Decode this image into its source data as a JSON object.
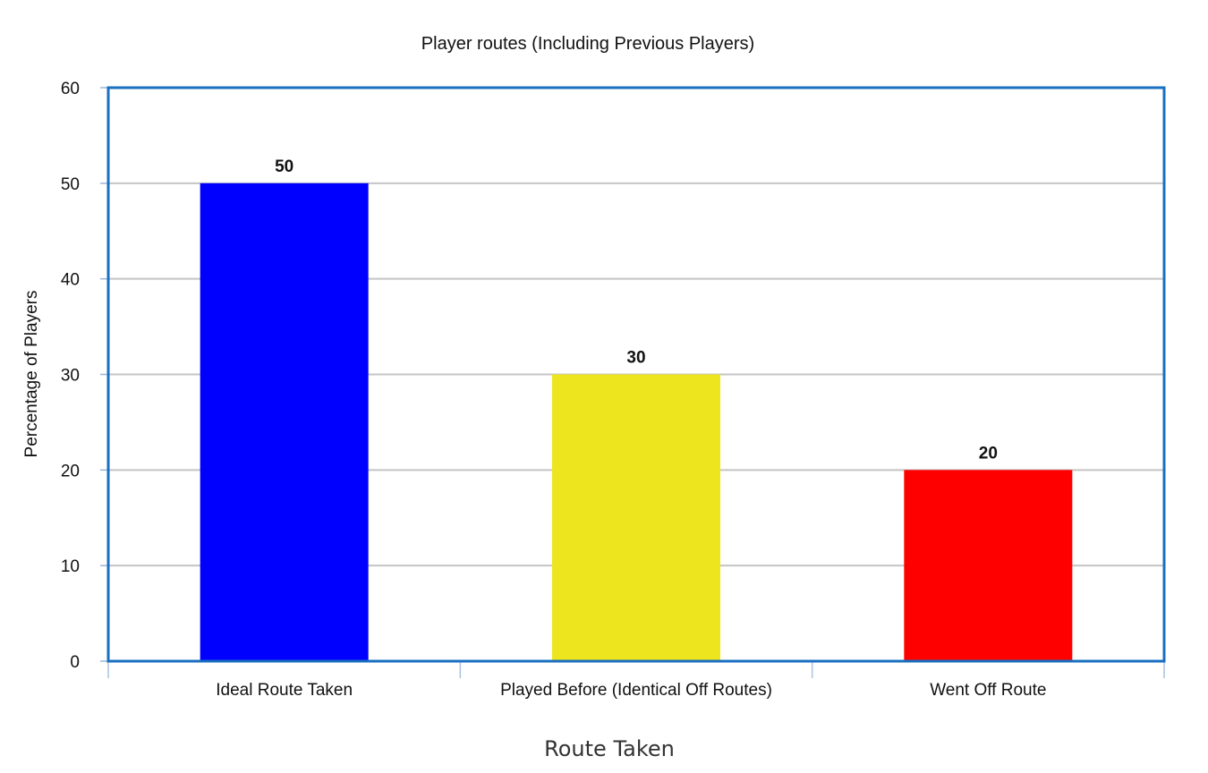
{
  "chart_data": {
    "type": "bar",
    "title": "Player routes (Including Previous Players)",
    "xlabel": "Route Taken",
    "ylabel": "Percentage of Players",
    "categories": [
      "Ideal Route Taken",
      "Played Before (Identical Off Routes)",
      "Went Off Route"
    ],
    "values": [
      50,
      30,
      20
    ],
    "data_labels": [
      "50",
      "30",
      "20"
    ],
    "bar_colors": [
      "#0000ff",
      "#ede51e",
      "#ff0000"
    ],
    "ylim": [
      0,
      60
    ],
    "yticks": [
      0,
      10,
      20,
      30,
      40,
      50,
      60
    ],
    "grid": true,
    "legend": "none",
    "frame_color": "#1a6fc0",
    "grid_color": "#c4c4c4"
  }
}
